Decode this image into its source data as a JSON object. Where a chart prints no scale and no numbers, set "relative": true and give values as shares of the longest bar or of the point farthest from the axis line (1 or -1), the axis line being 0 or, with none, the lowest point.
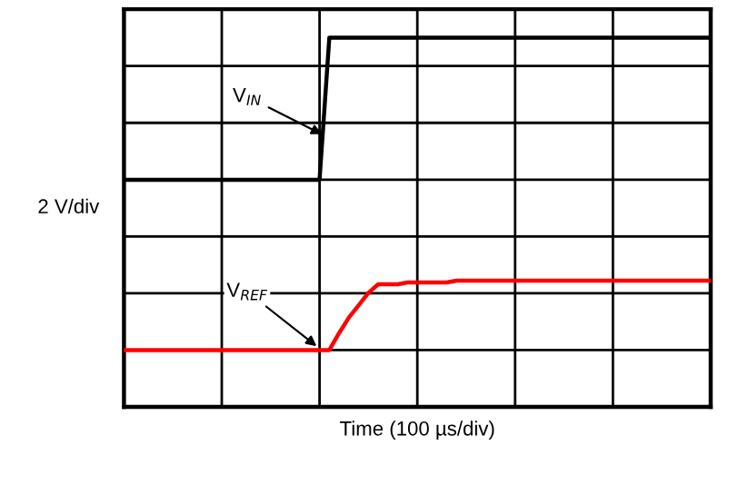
{
  "chart_data": {
    "type": "line",
    "relative": true,
    "xlabel": "Time (100 µs/div)",
    "ylabel": "2 V/div",
    "categories": [
      null,
      null,
      null,
      null,
      null,
      null,
      null,
      null,
      null,
      null,
      null,
      null,
      null,
      null,
      null,
      null,
      null,
      null,
      null,
      null,
      null,
      null,
      null,
      null,
      null,
      null,
      null,
      null,
      null,
      null,
      null,
      null,
      null,
      null,
      null,
      null,
      null,
      null,
      null,
      null,
      null,
      null,
      null,
      null,
      null,
      null,
      null,
      null,
      null,
      null,
      null,
      null,
      null,
      null,
      null,
      null,
      null,
      null,
      null,
      null,
      null
    ],
    "grid": true,
    "line_style": "solid",
    "series": [
      {
        "color": "#000000",
        "values": [
          0.615,
          0.615,
          0.615,
          0.615,
          0.615,
          0.615,
          0.615,
          0.615,
          0.615,
          0.615,
          0.615,
          0.615,
          0.615,
          0.615,
          0.615,
          0.615,
          0.615,
          0.615,
          0.615,
          0.615,
          0.615,
          1.0,
          1.0,
          1.0,
          1.0,
          1.0,
          1.0,
          1.0,
          1.0,
          1.0,
          1.0,
          1.0,
          1.0,
          1.0,
          1.0,
          1.0,
          1.0,
          1.0,
          1.0,
          1.0,
          1.0,
          1.0,
          1.0,
          1.0,
          1.0,
          1.0,
          1.0,
          1.0,
          1.0,
          1.0,
          1.0,
          1.0,
          1.0,
          1.0,
          1.0,
          1.0,
          1.0,
          1.0,
          1.0,
          1.0,
          1.0
        ]
      },
      {
        "color": "#ff0000",
        "values": [
          0.154,
          0.154,
          0.154,
          0.154,
          0.154,
          0.154,
          0.154,
          0.154,
          0.154,
          0.154,
          0.154,
          0.154,
          0.154,
          0.154,
          0.154,
          0.154,
          0.154,
          0.154,
          0.154,
          0.154,
          0.154,
          0.154,
          0.2,
          0.242,
          0.275,
          0.309,
          0.332,
          0.332,
          0.332,
          0.337,
          0.337,
          0.337,
          0.337,
          0.337,
          0.342,
          0.342,
          0.342,
          0.342,
          0.342,
          0.342,
          0.342,
          0.342,
          0.342,
          0.342,
          0.342,
          0.342,
          0.342,
          0.342,
          0.342,
          0.342,
          0.342,
          0.342,
          0.342,
          0.342,
          0.342,
          0.342,
          0.342,
          0.342,
          0.342,
          0.342,
          0.342
        ]
      }
    ],
    "annotations": [
      "V$_{IN}$",
      "V$_{REF}$"
    ]
  }
}
